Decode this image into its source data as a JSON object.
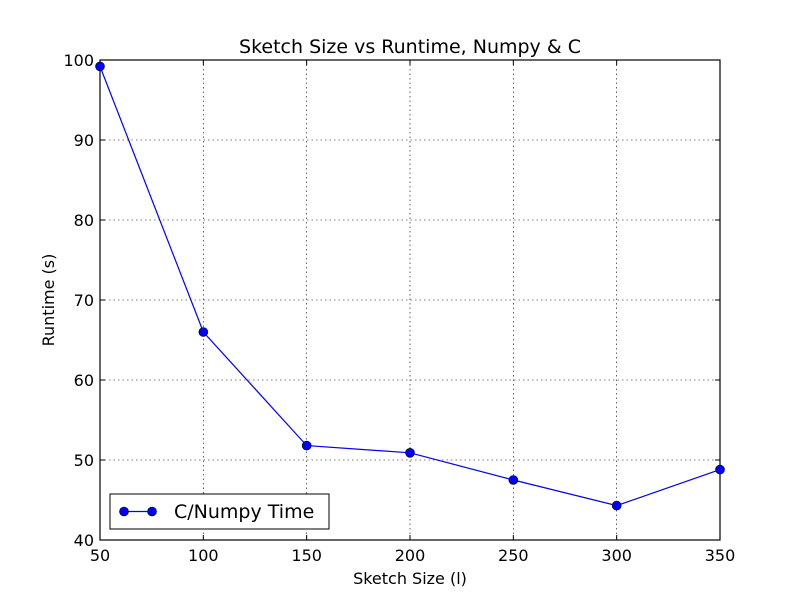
{
  "chart_data": {
    "type": "line",
    "title": "Sketch Size vs Runtime, Numpy & C",
    "xlabel": "Sketch Size (l)",
    "ylabel": "Runtime (s)",
    "xlim": [
      50,
      350
    ],
    "ylim": [
      40,
      100
    ],
    "xticks": [
      50,
      100,
      150,
      200,
      250,
      300,
      350
    ],
    "yticks": [
      40,
      50,
      60,
      70,
      80,
      90,
      100
    ],
    "grid": true,
    "legend_position": "lower-left",
    "series": [
      {
        "name": "C/Numpy Time",
        "color": "#0000ff",
        "marker": "circle",
        "x": [
          50,
          100,
          150,
          200,
          250,
          300,
          350
        ],
        "y": [
          99.2,
          66.0,
          51.8,
          50.9,
          47.5,
          44.3,
          48.8
        ]
      }
    ]
  }
}
